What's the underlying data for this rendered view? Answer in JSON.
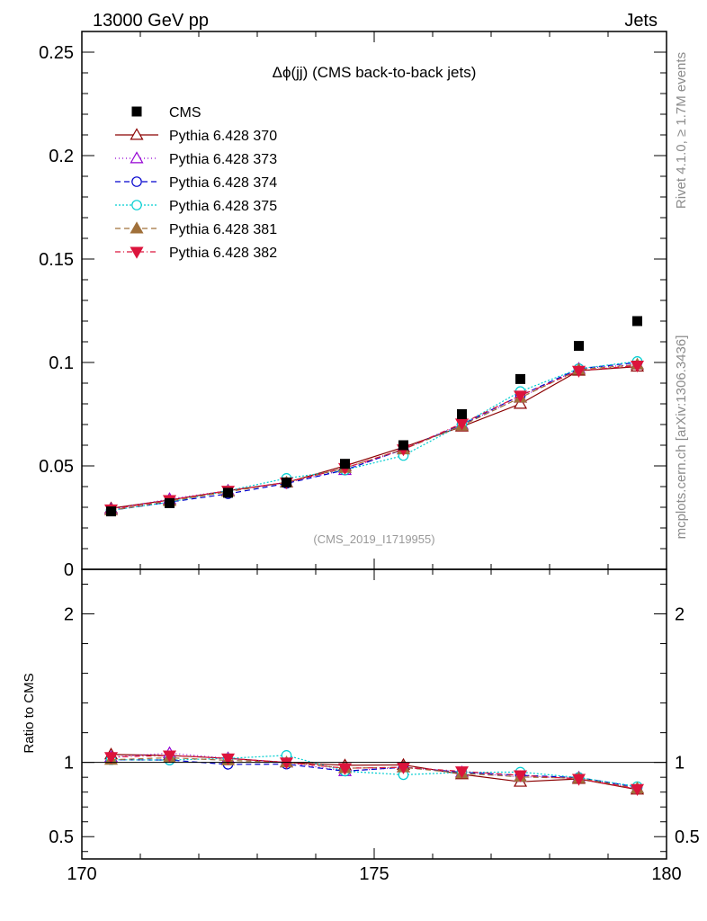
{
  "header": {
    "left_label": "13000 GeV pp",
    "right_label": "Jets",
    "side_top": "Rivet 4.1.0, ≥ 1.7M events",
    "side_bottom": "mcplots.cern.ch [arXiv:1306.3436]"
  },
  "chart_data": {
    "type": "scatter",
    "title": "Δϕ(jj) (CMS back-to-back jets)",
    "analysis_label": "(CMS_2019_I1719955)",
    "xlim": [
      170,
      180
    ],
    "xticks": [
      {
        "value": 170,
        "label": "170"
      },
      {
        "value": 175,
        "label": "175"
      },
      {
        "value": 180,
        "label": "180"
      }
    ],
    "x": [
      170.5,
      171.5,
      172.5,
      173.5,
      174.5,
      175.5,
      176.5,
      177.5,
      178.5,
      179.5
    ],
    "main_panel": {
      "ylim": [
        0,
        0.26
      ],
      "yticks": [
        {
          "value": 0,
          "label": "0"
        },
        {
          "value": 0.05,
          "label": "0.05"
        },
        {
          "value": 0.1,
          "label": "0.1"
        },
        {
          "value": 0.15,
          "label": "0.15"
        },
        {
          "value": 0.2,
          "label": "0.2"
        },
        {
          "value": 0.25,
          "label": "0.25"
        }
      ]
    },
    "ratio_panel": {
      "ylabel": "Ratio to CMS",
      "ylim": [
        0.35,
        2.3
      ],
      "yticks": [
        {
          "value": 0.5,
          "label": "0.5"
        },
        {
          "value": 1,
          "label": "1"
        },
        {
          "value": 2,
          "label": "2"
        }
      ]
    },
    "data": {
      "name": "CMS",
      "color": "#000000",
      "marker": "square",
      "values": [
        0.028,
        0.032,
        0.037,
        0.042,
        0.051,
        0.06,
        0.075,
        0.092,
        0.108,
        0.12
      ]
    },
    "series": [
      {
        "name": "Pythia 6.428 370",
        "color": "#8b0000",
        "marker": "triangle-open",
        "dash": "",
        "values": [
          0.0295,
          0.0335,
          0.038,
          0.042,
          0.05,
          0.059,
          0.069,
          0.08,
          0.096,
          0.098
        ]
      },
      {
        "name": "Pythia 6.428 373",
        "color": "#9400d3",
        "marker": "triangle-open",
        "dash": "1,3",
        "values": [
          0.029,
          0.034,
          0.038,
          0.042,
          0.048,
          0.058,
          0.07,
          0.083,
          0.097,
          0.099
        ]
      },
      {
        "name": "Pythia 6.428 374",
        "color": "#0000cd",
        "marker": "circle-open",
        "dash": "6,4",
        "values": [
          0.0285,
          0.0325,
          0.0365,
          0.0415,
          0.048,
          0.058,
          0.07,
          0.084,
          0.097,
          0.1
        ]
      },
      {
        "name": "Pythia 6.428 375",
        "color": "#00ced1",
        "marker": "circle-open",
        "dash": "2,2",
        "values": [
          0.0285,
          0.0325,
          0.038,
          0.044,
          0.048,
          0.055,
          0.07,
          0.086,
          0.097,
          0.1005
        ]
      },
      {
        "name": "Pythia 6.428 381",
        "color": "#a0703a",
        "marker": "triangle-filled",
        "dash": "6,4",
        "values": [
          0.0285,
          0.033,
          0.0375,
          0.042,
          0.049,
          0.058,
          0.0695,
          0.083,
          0.0965,
          0.099
        ]
      },
      {
        "name": "Pythia 6.428 382",
        "color": "#dc143c",
        "marker": "triangle-down-filled",
        "dash": "6,3,1,3",
        "values": [
          0.029,
          0.0335,
          0.038,
          0.042,
          0.049,
          0.058,
          0.0705,
          0.084,
          0.096,
          0.0985
        ]
      }
    ]
  }
}
